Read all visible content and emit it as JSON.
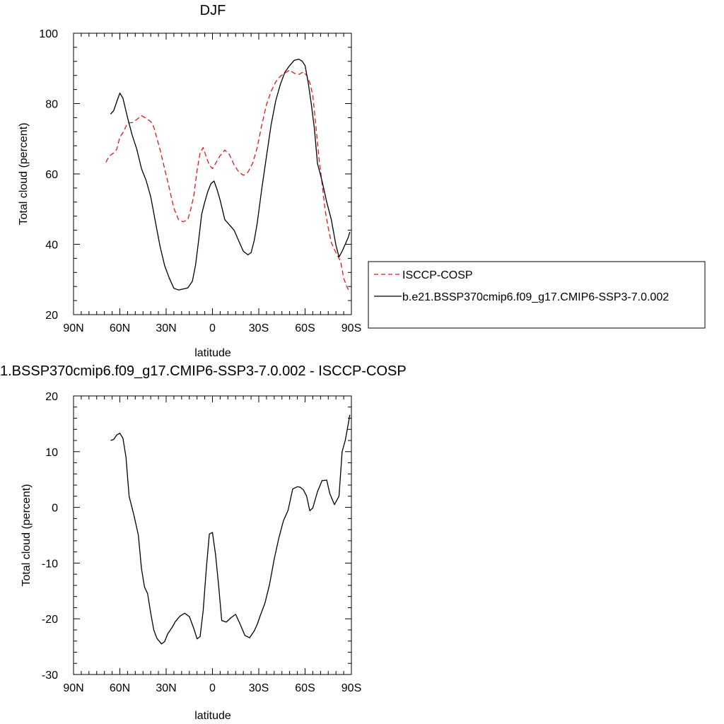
{
  "chart_data": [
    {
      "type": "line",
      "title": "DJF",
      "xlabel": "latitude",
      "ylabel": "Total cloud (percent)",
      "xlim": [
        90,
        -90
      ],
      "ylim": [
        20,
        100
      ],
      "x_ticks": [
        90,
        60,
        30,
        0,
        -30,
        -60,
        -90
      ],
      "x_tick_labels": [
        "90N",
        "60N",
        "30N",
        "0",
        "30S",
        "60S",
        "90S"
      ],
      "y_ticks": [
        20,
        40,
        60,
        80,
        100
      ],
      "y_tick_labels": [
        "20",
        "40",
        "60",
        "80",
        "100"
      ],
      "grid": false,
      "legend_position": "right",
      "series": [
        {
          "name": "ISCCP-COSP",
          "color": "#e8141b",
          "dash": true,
          "x": [
            69,
            67,
            64,
            62,
            60,
            58,
            55,
            52,
            49,
            46,
            43,
            40,
            38,
            36,
            34,
            31,
            28,
            25,
            22,
            19,
            16,
            14,
            12,
            10,
            8,
            6,
            4,
            2,
            0,
            -2,
            -5,
            -8,
            -11,
            -14,
            -17,
            -20,
            -23,
            -26,
            -29,
            -32,
            -35,
            -38,
            -41,
            -44,
            -47,
            -50,
            -53,
            -56,
            -59,
            -61,
            -63,
            -65,
            -67,
            -69,
            -71,
            -73,
            -75,
            -77,
            -79,
            -81,
            -83,
            -85,
            -87,
            -89
          ],
          "y": [
            63.3,
            65,
            66,
            67,
            70.5,
            71.7,
            74.5,
            74.6,
            75.5,
            76.6,
            75.8,
            74.9,
            73.3,
            70.2,
            67,
            61.5,
            56,
            50.3,
            47,
            46.4,
            47,
            50,
            54,
            61,
            66,
            67.5,
            64.8,
            62.5,
            61.5,
            63,
            65.2,
            66.8,
            65.5,
            62.6,
            60.6,
            59.6,
            60.5,
            63,
            67.5,
            74,
            79.7,
            83.5,
            86.2,
            87.8,
            88.7,
            89.5,
            88.6,
            88.3,
            89,
            88,
            86,
            82.4,
            73.5,
            64.6,
            57.3,
            49.6,
            44.6,
            40.5,
            38.5,
            36.8,
            35.2,
            30.4,
            28,
            26.3
          ]
        },
        {
          "name": "b.e21.BSSP370cmip6.f09_g17.CMIP6-SSP3-7.0.002",
          "color": "#000000",
          "dash": false,
          "x": [
            66,
            64,
            62,
            60,
            58,
            55,
            52,
            49,
            46,
            43,
            40,
            37,
            34,
            31,
            28,
            25,
            22,
            19,
            16,
            13,
            11,
            9,
            7,
            5,
            3,
            1,
            -1,
            -3,
            -5,
            -8,
            -11,
            -14,
            -17,
            -20,
            -23,
            -25,
            -27,
            -29,
            -32,
            -35,
            -38,
            -41,
            -44,
            -47,
            -50,
            -53,
            -56,
            -58,
            -60,
            -62,
            -64,
            -66,
            -68,
            -71,
            -74,
            -77,
            -80,
            -82,
            -84,
            -86,
            -88,
            -89
          ],
          "y": [
            77,
            78,
            80.5,
            83,
            81.5,
            76,
            71,
            67,
            61.5,
            58.2,
            53.5,
            46.5,
            39.5,
            34,
            30.4,
            27.5,
            27,
            27.3,
            27.6,
            29.5,
            34,
            41,
            48.5,
            52,
            55,
            57.2,
            58,
            55.5,
            52.5,
            47,
            45.5,
            44,
            41,
            38,
            37,
            37.6,
            41,
            46,
            56,
            65,
            74,
            80.8,
            85.5,
            89,
            90.8,
            92.3,
            92.6,
            92.1,
            90.8,
            86,
            80,
            73,
            63,
            58,
            52,
            47,
            39.7,
            36.4,
            38,
            40,
            42,
            43.5
          ]
        }
      ]
    },
    {
      "type": "line",
      "title": "1.BSSP370cmip6.f09_g17.CMIP6-SSP3-7.0.002 - ISCCP-COSP",
      "xlabel": "latitude",
      "ylabel": "Total cloud (percent)",
      "xlim": [
        90,
        -90
      ],
      "ylim": [
        -30,
        20
      ],
      "x_ticks": [
        90,
        60,
        30,
        0,
        -30,
        -60,
        -90
      ],
      "x_tick_labels": [
        "90N",
        "60N",
        "30N",
        "0",
        "30S",
        "60S",
        "90S"
      ],
      "y_ticks": [
        -30,
        -20,
        -10,
        0,
        10,
        20
      ],
      "y_tick_labels": [
        "-30",
        "-20",
        "-10",
        "0",
        "10",
        "20"
      ],
      "grid": false,
      "series": [
        {
          "color": "#000000",
          "dash": false,
          "x": [
            66,
            64,
            62,
            60,
            58,
            56,
            54,
            51,
            48,
            46,
            44,
            42,
            40,
            38,
            36,
            33,
            31,
            29,
            26,
            24,
            21,
            18,
            15,
            12,
            10,
            8,
            6,
            4,
            2,
            0,
            -2,
            -4,
            -6,
            -9,
            -12,
            -15,
            -18,
            -21,
            -24,
            -27,
            -29,
            -31,
            -34,
            -37,
            -40,
            -43,
            -46,
            -49,
            -52,
            -55,
            -57,
            -59,
            -61,
            -63,
            -65,
            -68,
            -71,
            -74,
            -76,
            -79,
            -82,
            -84,
            -86,
            -88,
            -89
          ],
          "y": [
            12,
            12.2,
            13,
            13.3,
            12.4,
            9,
            2,
            -1.3,
            -5,
            -11,
            -14.3,
            -15.5,
            -19,
            -22,
            -23.5,
            -24.5,
            -24.1,
            -22.7,
            -21.5,
            -20.5,
            -19.5,
            -19,
            -19.6,
            -21.8,
            -23.6,
            -23.2,
            -18.5,
            -11,
            -4.8,
            -4.5,
            -8.5,
            -14,
            -20.3,
            -20.6,
            -19.8,
            -19.2,
            -21,
            -23,
            -23.4,
            -22.2,
            -21,
            -19.4,
            -17.2,
            -13.8,
            -9.3,
            -5.5,
            -2.4,
            -0.5,
            3.3,
            3.7,
            3.6,
            3.1,
            2,
            -0.6,
            -0.1,
            2.8,
            4.8,
            4.9,
            2.5,
            0.5,
            2,
            10,
            12,
            15,
            16.6
          ]
        }
      ]
    }
  ]
}
